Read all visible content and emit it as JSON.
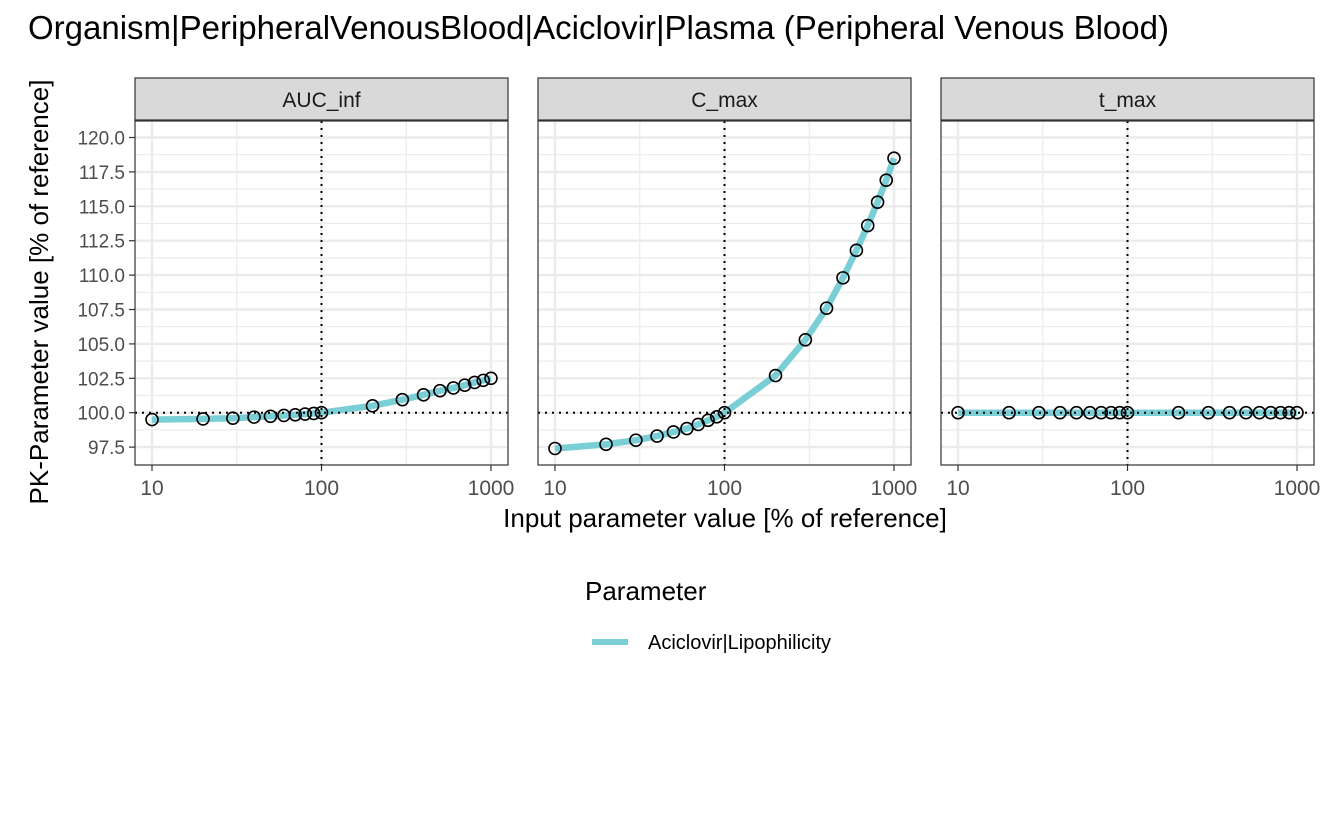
{
  "chart_data": {
    "type": "line",
    "title": "Organism|PeripheralVenousBlood|Aciclovir|Plasma (Peripheral Venous Blood)",
    "xlabel": "Input parameter value [% of reference]",
    "ylabel": "PK-Parameter value [% of reference]",
    "x_scale": "log",
    "xlim": [
      10,
      1000
    ],
    "ylim": [
      96.2,
      121.2
    ],
    "x_ticks": [
      10,
      100,
      1000
    ],
    "x_tick_labels": [
      "10",
      "100",
      "1000"
    ],
    "y_ticks": [
      97.5,
      100.0,
      102.5,
      105.0,
      107.5,
      110.0,
      112.5,
      115.0,
      117.5,
      120.0
    ],
    "y_tick_labels": [
      "97.5",
      "100.0",
      "102.5",
      "105.0",
      "107.5",
      "110.0",
      "112.5",
      "115.0",
      "117.5",
      "120.0"
    ],
    "grid": true,
    "reference_lines": {
      "x": 100,
      "y": 100
    },
    "legend": {
      "title": "Parameter",
      "position": "bottom",
      "entries": [
        "Aciclovir|Lipophilicity"
      ]
    },
    "series_color": "#7ACED6",
    "x": [
      10,
      20,
      30,
      40,
      50,
      60,
      70,
      80,
      90,
      100,
      200,
      300,
      400,
      500,
      600,
      700,
      800,
      900,
      1000
    ],
    "panels": [
      {
        "name": "AUC_inf",
        "values": [
          99.5,
          99.55,
          99.6,
          99.68,
          99.74,
          99.8,
          99.85,
          99.9,
          99.95,
          100.0,
          100.5,
          100.95,
          101.3,
          101.6,
          101.8,
          102.0,
          102.2,
          102.35,
          102.5
        ]
      },
      {
        "name": "C_max",
        "values": [
          97.4,
          97.7,
          98.0,
          98.3,
          98.6,
          98.85,
          99.15,
          99.45,
          99.7,
          100.0,
          102.7,
          105.3,
          107.6,
          109.8,
          111.8,
          113.6,
          115.3,
          116.9,
          118.5
        ]
      },
      {
        "name": "t_max",
        "values": [
          100,
          100,
          100,
          100,
          100,
          100,
          100,
          100,
          100,
          100,
          100,
          100,
          100,
          100,
          100,
          100,
          100,
          100,
          100
        ]
      }
    ]
  }
}
